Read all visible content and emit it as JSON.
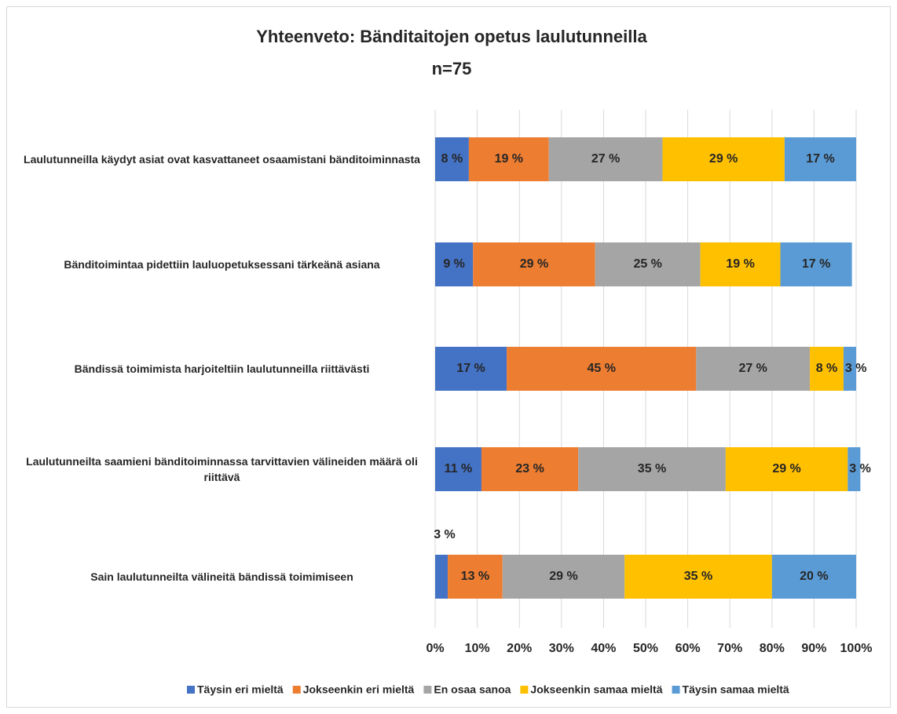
{
  "chart_data": {
    "type": "stacked_barh",
    "title": "Yhteenveto: Bänditaitojen opetus laulutunneilla",
    "subtitle": "n=75",
    "categories": [
      "Laulutunneilla käydyt asiat ovat kasvattaneet osaamistani bänditoiminnasta",
      "Bänditoimintaa pidettiin lauluopetuksessani tärkeänä asiana",
      "Bändissä toimimista harjoiteltiin laulutunneilla riittävästi",
      "Laulutunneilta saamieni bänditoiminnassa tarvittavien välineiden määrä oli riittävä",
      "Sain laulutunneilta välineitä bändissä toimimiseen"
    ],
    "series": [
      {
        "name": "Täysin eri mieltä",
        "color": "#4472c4",
        "values": [
          8,
          9,
          17,
          11,
          3
        ],
        "value_labels": [
          "8 %",
          "9 %",
          "17 %",
          "11 %",
          "3 %"
        ]
      },
      {
        "name": "Jokseenkin eri mieltä",
        "color": "#ed7d31",
        "values": [
          19,
          29,
          45,
          23,
          13
        ],
        "value_labels": [
          "19 %",
          "29 %",
          "45 %",
          "23 %",
          "13 %"
        ]
      },
      {
        "name": "En osaa sanoa",
        "color": "#a5a5a5",
        "values": [
          27,
          25,
          27,
          35,
          29
        ],
        "value_labels": [
          "27 %",
          "25 %",
          "27 %",
          "35 %",
          "29 %"
        ]
      },
      {
        "name": "Jokseenkin samaa mieltä",
        "color": "#ffc000",
        "values": [
          29,
          19,
          8,
          29,
          35
        ],
        "value_labels": [
          "29 %",
          "19 %",
          "8 %",
          "29 %",
          "35 %"
        ]
      },
      {
        "name": "Täysin samaa mieltä",
        "color": "#5b9bd5",
        "values": [
          17,
          17,
          3,
          3,
          20
        ],
        "value_labels": [
          "17 %",
          "17 %",
          "3 %",
          "3 %",
          "20 %"
        ]
      }
    ],
    "xlim": [
      0,
      100
    ],
    "xticks": [
      {
        "value": 0,
        "label": "0%"
      },
      {
        "value": 10,
        "label": "10%"
      },
      {
        "value": 20,
        "label": "20%"
      },
      {
        "value": 30,
        "label": "30%"
      },
      {
        "value": 40,
        "label": "40%"
      },
      {
        "value": 50,
        "label": "50%"
      },
      {
        "value": 60,
        "label": "60%"
      },
      {
        "value": 70,
        "label": "70%"
      },
      {
        "value": 80,
        "label": "80%"
      },
      {
        "value": 90,
        "label": "90%"
      },
      {
        "value": 100,
        "label": "100%"
      }
    ],
    "grid": true,
    "legend": "bottom"
  }
}
